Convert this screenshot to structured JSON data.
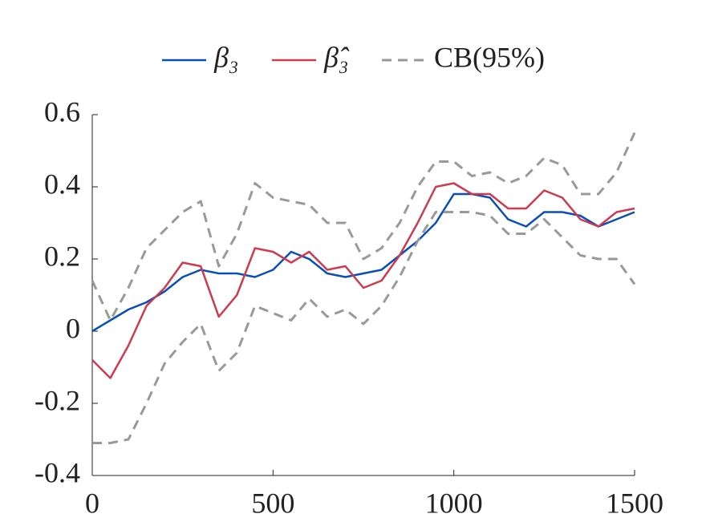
{
  "chart_data": {
    "type": "line",
    "x": [
      0,
      50,
      100,
      150,
      200,
      250,
      300,
      350,
      400,
      450,
      500,
      550,
      600,
      650,
      700,
      750,
      800,
      850,
      900,
      950,
      1000,
      1050,
      1100,
      1150,
      1200,
      1250,
      1300,
      1350,
      1400,
      1450,
      1500
    ],
    "series": [
      {
        "name": "β₃",
        "color": "#0a4fb5",
        "dash": false,
        "values": [
          0.0,
          0.03,
          0.06,
          0.08,
          0.11,
          0.15,
          0.17,
          0.16,
          0.16,
          0.15,
          0.17,
          0.22,
          0.2,
          0.16,
          0.15,
          0.16,
          0.17,
          0.21,
          0.25,
          0.3,
          0.38,
          0.38,
          0.37,
          0.31,
          0.29,
          0.33,
          0.33,
          0.32,
          0.29,
          0.31,
          0.33
        ]
      },
      {
        "name": "β̂₃",
        "color": "#cf3a4f",
        "dash": false,
        "values": [
          -0.08,
          -0.13,
          -0.04,
          0.07,
          0.12,
          0.19,
          0.18,
          0.04,
          0.1,
          0.23,
          0.22,
          0.19,
          0.22,
          0.17,
          0.18,
          0.12,
          0.14,
          0.21,
          0.3,
          0.4,
          0.41,
          0.38,
          0.38,
          0.34,
          0.34,
          0.39,
          0.37,
          0.31,
          0.29,
          0.33,
          0.34
        ]
      },
      {
        "name": "CB(95%)",
        "color": "#999999",
        "dash": true,
        "values": [
          0.14,
          0.03,
          0.12,
          0.23,
          0.28,
          0.33,
          0.36,
          0.18,
          0.27,
          0.41,
          0.37,
          0.36,
          0.35,
          0.3,
          0.3,
          0.2,
          0.23,
          0.3,
          0.4,
          0.47,
          0.47,
          0.43,
          0.44,
          0.41,
          0.43,
          0.48,
          0.46,
          0.38,
          0.38,
          0.44,
          0.55
        ],
        "lower": [
          -0.31,
          -0.31,
          -0.3,
          -0.2,
          -0.09,
          -0.03,
          0.02,
          -0.11,
          -0.06,
          0.07,
          0.05,
          0.03,
          0.09,
          0.04,
          0.06,
          0.02,
          0.07,
          0.15,
          0.25,
          0.33,
          0.33,
          0.33,
          0.32,
          0.27,
          0.27,
          0.31,
          0.26,
          0.21,
          0.2,
          0.2,
          0.13
        ]
      }
    ],
    "xlim": [
      0,
      1500
    ],
    "xticks": [
      0,
      500,
      1000,
      1500
    ],
    "ylim": [
      -0.4,
      0.6
    ],
    "yticks": [
      -0.4,
      -0.2,
      0,
      0.2,
      0.4,
      0.6
    ],
    "grid": false,
    "legend": "top"
  }
}
